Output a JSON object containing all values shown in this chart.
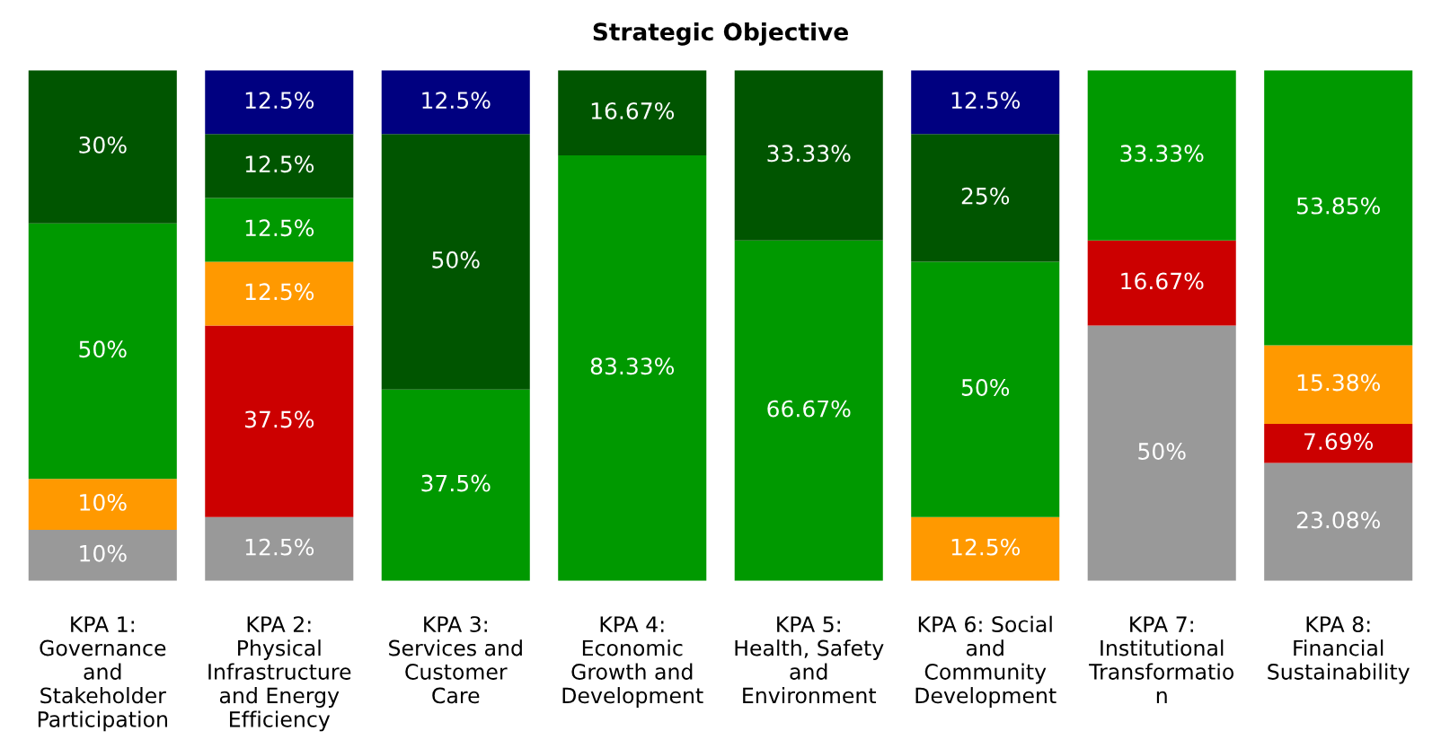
{
  "chart_data": {
    "type": "bar",
    "stacked": true,
    "title": "Strategic Objective",
    "categories": [
      "KPA 1:\nGovernance\nand\nStakeholder\nParticipation",
      "KPA 2:\nPhysical\nInfrastructure\nand Energy\nEfficiency",
      "KPA 3:\nServices and\nCustomer\nCare",
      "KPA 4:\nEconomic\nGrowth and\nDevelopment",
      "KPA 5:\nHealth, Safety\nand\nEnvironment",
      "KPA 6: Social\nand\nCommunity\nDevelopment",
      "KPA 7:\nInstitutional\nTransformatio\nn",
      "KPA 8:\nFinancial\nSustainability"
    ],
    "series": [
      {
        "color": "#999999",
        "values": [
          10,
          12.5,
          null,
          null,
          null,
          null,
          50,
          23.08
        ],
        "value_labels": [
          "10%",
          "12.5%",
          null,
          null,
          null,
          null,
          "50%",
          "23.08%"
        ]
      },
      {
        "color": "#cc0000",
        "values": [
          null,
          37.5,
          null,
          null,
          null,
          null,
          16.67,
          7.69
        ],
        "value_labels": [
          null,
          "37.5%",
          null,
          null,
          null,
          null,
          "16.67%",
          "7.69%"
        ]
      },
      {
        "color": "#ff9900",
        "values": [
          10,
          12.5,
          null,
          null,
          null,
          12.5,
          null,
          15.38
        ],
        "value_labels": [
          "10%",
          "12.5%",
          null,
          null,
          null,
          "12.5%",
          null,
          "15.38%"
        ]
      },
      {
        "color": "#009900",
        "values": [
          50,
          12.5,
          37.5,
          83.33,
          66.67,
          50,
          33.33,
          53.85
        ],
        "value_labels": [
          "50%",
          "12.5%",
          "37.5%",
          "83.33%",
          "66.67%",
          "50%",
          "33.33%",
          "53.85%"
        ]
      },
      {
        "color": "#005500",
        "values": [
          30,
          12.5,
          50,
          16.67,
          33.33,
          25,
          null,
          null
        ],
        "value_labels": [
          "30%",
          "12.5%",
          "50%",
          "16.67%",
          "33.33%",
          "25%",
          null,
          null
        ]
      },
      {
        "color": "#000080",
        "values": [
          null,
          12.5,
          12.5,
          null,
          null,
          12.5,
          null,
          null
        ],
        "value_labels": [
          null,
          "12.5%",
          "12.5%",
          null,
          null,
          "12.5%",
          null,
          null
        ]
      }
    ]
  }
}
